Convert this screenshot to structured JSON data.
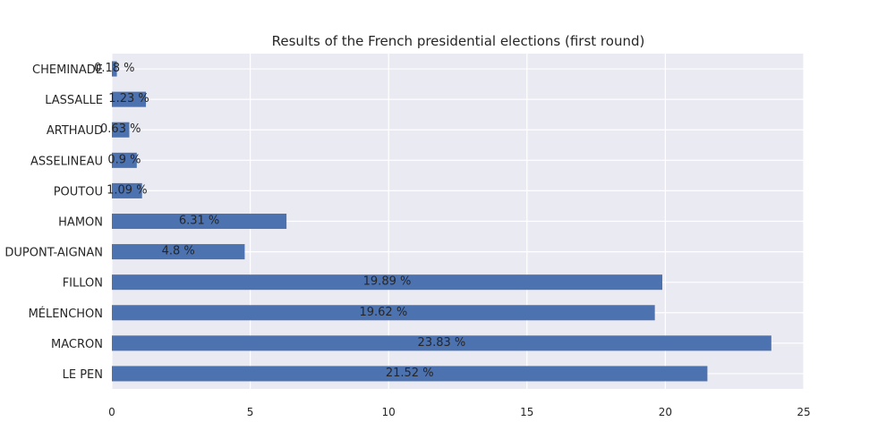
{
  "chart_data": {
    "type": "bar",
    "orientation": "horizontal",
    "title": "Results of the French presidential elections (first round)",
    "xlabel": "",
    "ylabel": "",
    "xlim": [
      0,
      25
    ],
    "xticks": [
      "0",
      "5",
      "10",
      "15",
      "20",
      "25"
    ],
    "grid": true,
    "legend": "none",
    "categories": [
      "LE PEN",
      "MACRON",
      "MÉLENCHON",
      "FILLON",
      "DUPONT-AIGNAN",
      "HAMON",
      "POUTOU",
      "ASSELINEAU",
      "ARTHAUD",
      "LASSALLE",
      "CHEMINADE"
    ],
    "values": [
      21.52,
      23.83,
      19.62,
      19.89,
      4.8,
      6.31,
      1.09,
      0.9,
      0.63,
      1.23,
      0.18
    ],
    "data_labels": [
      "21.52 %",
      "23.83 %",
      "19.62 %",
      "19.89 %",
      "4.8 %",
      "6.31 %",
      "1.09 %",
      "0.9 %",
      "0.63 %",
      "1.23 %",
      "0.18 %"
    ],
    "colors": {
      "bar": "#4c72b0",
      "plot_background": "#eaeaf2",
      "grid": "#ffffff",
      "text": "#262626"
    }
  }
}
